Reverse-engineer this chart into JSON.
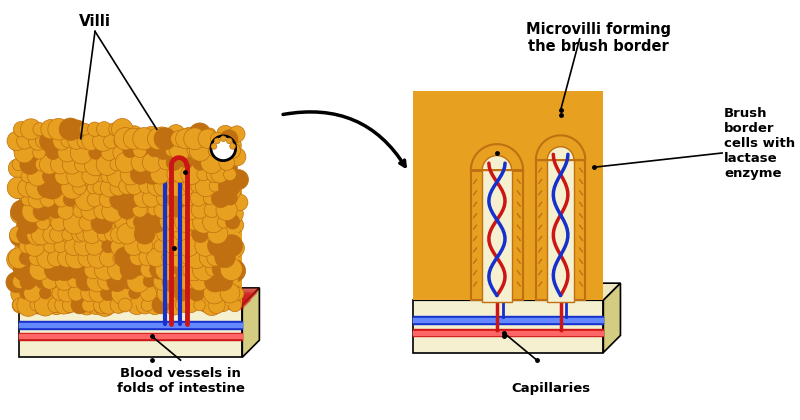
{
  "background_color": "#ffffff",
  "villi_color": "#E8A020",
  "villi_dark": "#C07010",
  "villi_texture": "#B86A00",
  "base_color": "#F5F0D0",
  "base_top_color": "#EDE8C0",
  "base_side_color": "#D4CC80",
  "red_vessel": "#CC1515",
  "blue_vessel": "#1530CC",
  "text_color": "#000000",
  "labels": {
    "villi": "Villi",
    "blood_vessels": "Blood vessels in\nfolds of intestine",
    "microvilli": "Microvilli forming\nthe brush border",
    "brush_border": "Brush\nborder\ncells with\nlactase\nenzyme",
    "capillaries": "Capillaries"
  }
}
